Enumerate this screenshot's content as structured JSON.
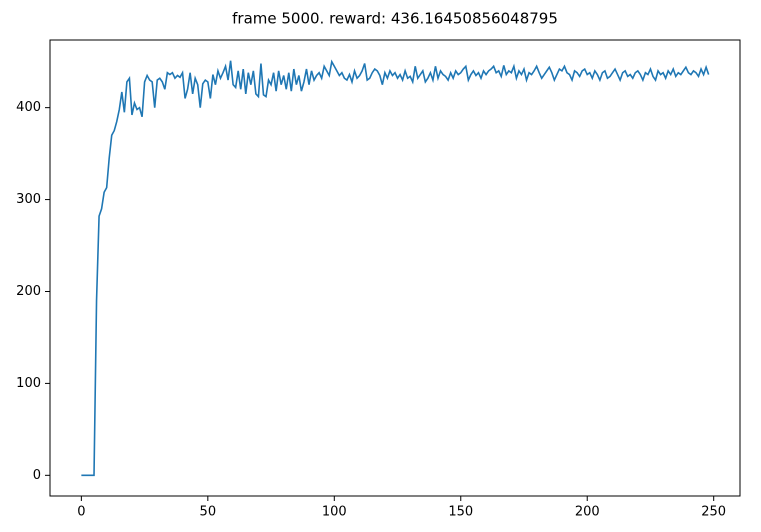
{
  "chart_data": {
    "type": "line",
    "title": "frame 5000. reward: 436.16450856048795",
    "x": [
      0,
      1,
      2,
      3,
      4,
      5,
      6,
      7,
      8,
      9,
      10,
      11,
      12,
      13,
      14,
      15,
      16,
      17,
      18,
      19,
      20,
      21,
      22,
      23,
      24,
      25,
      26,
      27,
      28,
      29,
      30,
      31,
      32,
      33,
      34,
      35,
      36,
      37,
      38,
      39,
      40,
      41,
      42,
      43,
      44,
      45,
      46,
      47,
      48,
      49,
      50,
      51,
      52,
      53,
      54,
      55,
      56,
      57,
      58,
      59,
      60,
      61,
      62,
      63,
      64,
      65,
      66,
      67,
      68,
      69,
      70,
      71,
      72,
      73,
      74,
      75,
      76,
      77,
      78,
      79,
      80,
      81,
      82,
      83,
      84,
      85,
      86,
      87,
      88,
      89,
      90,
      91,
      92,
      93,
      94,
      95,
      96,
      97,
      98,
      99,
      100,
      101,
      102,
      103,
      104,
      105,
      106,
      107,
      108,
      109,
      110,
      111,
      112,
      113,
      114,
      115,
      116,
      117,
      118,
      119,
      120,
      121,
      122,
      123,
      124,
      125,
      126,
      127,
      128,
      129,
      130,
      131,
      132,
      133,
      134,
      135,
      136,
      137,
      138,
      139,
      140,
      141,
      142,
      143,
      144,
      145,
      146,
      147,
      148,
      149,
      150,
      151,
      152,
      153,
      154,
      155,
      156,
      157,
      158,
      159,
      160,
      161,
      162,
      163,
      164,
      165,
      166,
      167,
      168,
      169,
      170,
      171,
      172,
      173,
      174,
      175,
      176,
      177,
      178,
      179,
      180,
      181,
      182,
      183,
      184,
      185,
      186,
      187,
      188,
      189,
      190,
      191,
      192,
      193,
      194,
      195,
      196,
      197,
      198,
      199,
      200,
      201,
      202,
      203,
      204,
      205,
      206,
      207,
      208,
      209,
      210,
      211,
      212,
      213,
      214,
      215,
      216,
      217,
      218,
      219,
      220,
      221,
      222,
      223,
      224,
      225,
      226,
      227,
      228,
      229,
      230,
      231,
      232,
      233,
      234,
      235,
      236,
      237,
      238,
      239,
      240,
      241,
      242,
      243,
      244,
      245,
      246,
      247,
      248
    ],
    "series": [
      {
        "color": "#1f77b4",
        "values": [
          0,
          0,
          0,
          0,
          0,
          0,
          190,
          282,
          290,
          308,
          313,
          345,
          370,
          375,
          385,
          398,
          417,
          395,
          428,
          432,
          392,
          405,
          398,
          400,
          390,
          428,
          435,
          430,
          428,
          400,
          430,
          432,
          428,
          420,
          438,
          436,
          438,
          432,
          435,
          433,
          438,
          410,
          420,
          438,
          415,
          432,
          425,
          400,
          426,
          430,
          428,
          410,
          436,
          425,
          440,
          432,
          438,
          445,
          430,
          451,
          425,
          422,
          440,
          420,
          442,
          415,
          438,
          425,
          440,
          415,
          412,
          448,
          414,
          412,
          430,
          425,
          438,
          418,
          440,
          425,
          435,
          420,
          438,
          418,
          442,
          425,
          435,
          418,
          428,
          442,
          425,
          440,
          430,
          435,
          438,
          432,
          445,
          440,
          435,
          450,
          445,
          440,
          435,
          438,
          432,
          430,
          436,
          428,
          440,
          432,
          435,
          440,
          448,
          430,
          432,
          438,
          442,
          440,
          435,
          425,
          438,
          432,
          440,
          435,
          438,
          432,
          436,
          430,
          440,
          432,
          434,
          428,
          445,
          432,
          436,
          440,
          428,
          432,
          438,
          430,
          445,
          432,
          440,
          436,
          434,
          430,
          438,
          432,
          440,
          436,
          438,
          442,
          445,
          430,
          436,
          440,
          435,
          438,
          432,
          440,
          436,
          440,
          442,
          445,
          438,
          440,
          434,
          446,
          436,
          440,
          438,
          445,
          432,
          440,
          436,
          442,
          430,
          438,
          436,
          440,
          445,
          438,
          432,
          436,
          440,
          444,
          438,
          430,
          436,
          442,
          440,
          445,
          438,
          436,
          430,
          440,
          438,
          434,
          440,
          442,
          436,
          438,
          432,
          440,
          436,
          430,
          438,
          440,
          432,
          434,
          438,
          442,
          436,
          430,
          438,
          440,
          434,
          436,
          432,
          438,
          440,
          436,
          430,
          438,
          436,
          442,
          434,
          430,
          440,
          436,
          438,
          432,
          440,
          436,
          442,
          434,
          438,
          436,
          440,
          444,
          438,
          436,
          440,
          438,
          434,
          442,
          436,
          444,
          436
        ]
      }
    ],
    "xlim": [
      -12.4,
      260.4
    ],
    "ylim": [
      -22.5,
      473.6
    ],
    "xticks": [
      0,
      50,
      100,
      150,
      200,
      250
    ],
    "yticks": [
      0,
      100,
      200,
      300,
      400
    ]
  }
}
